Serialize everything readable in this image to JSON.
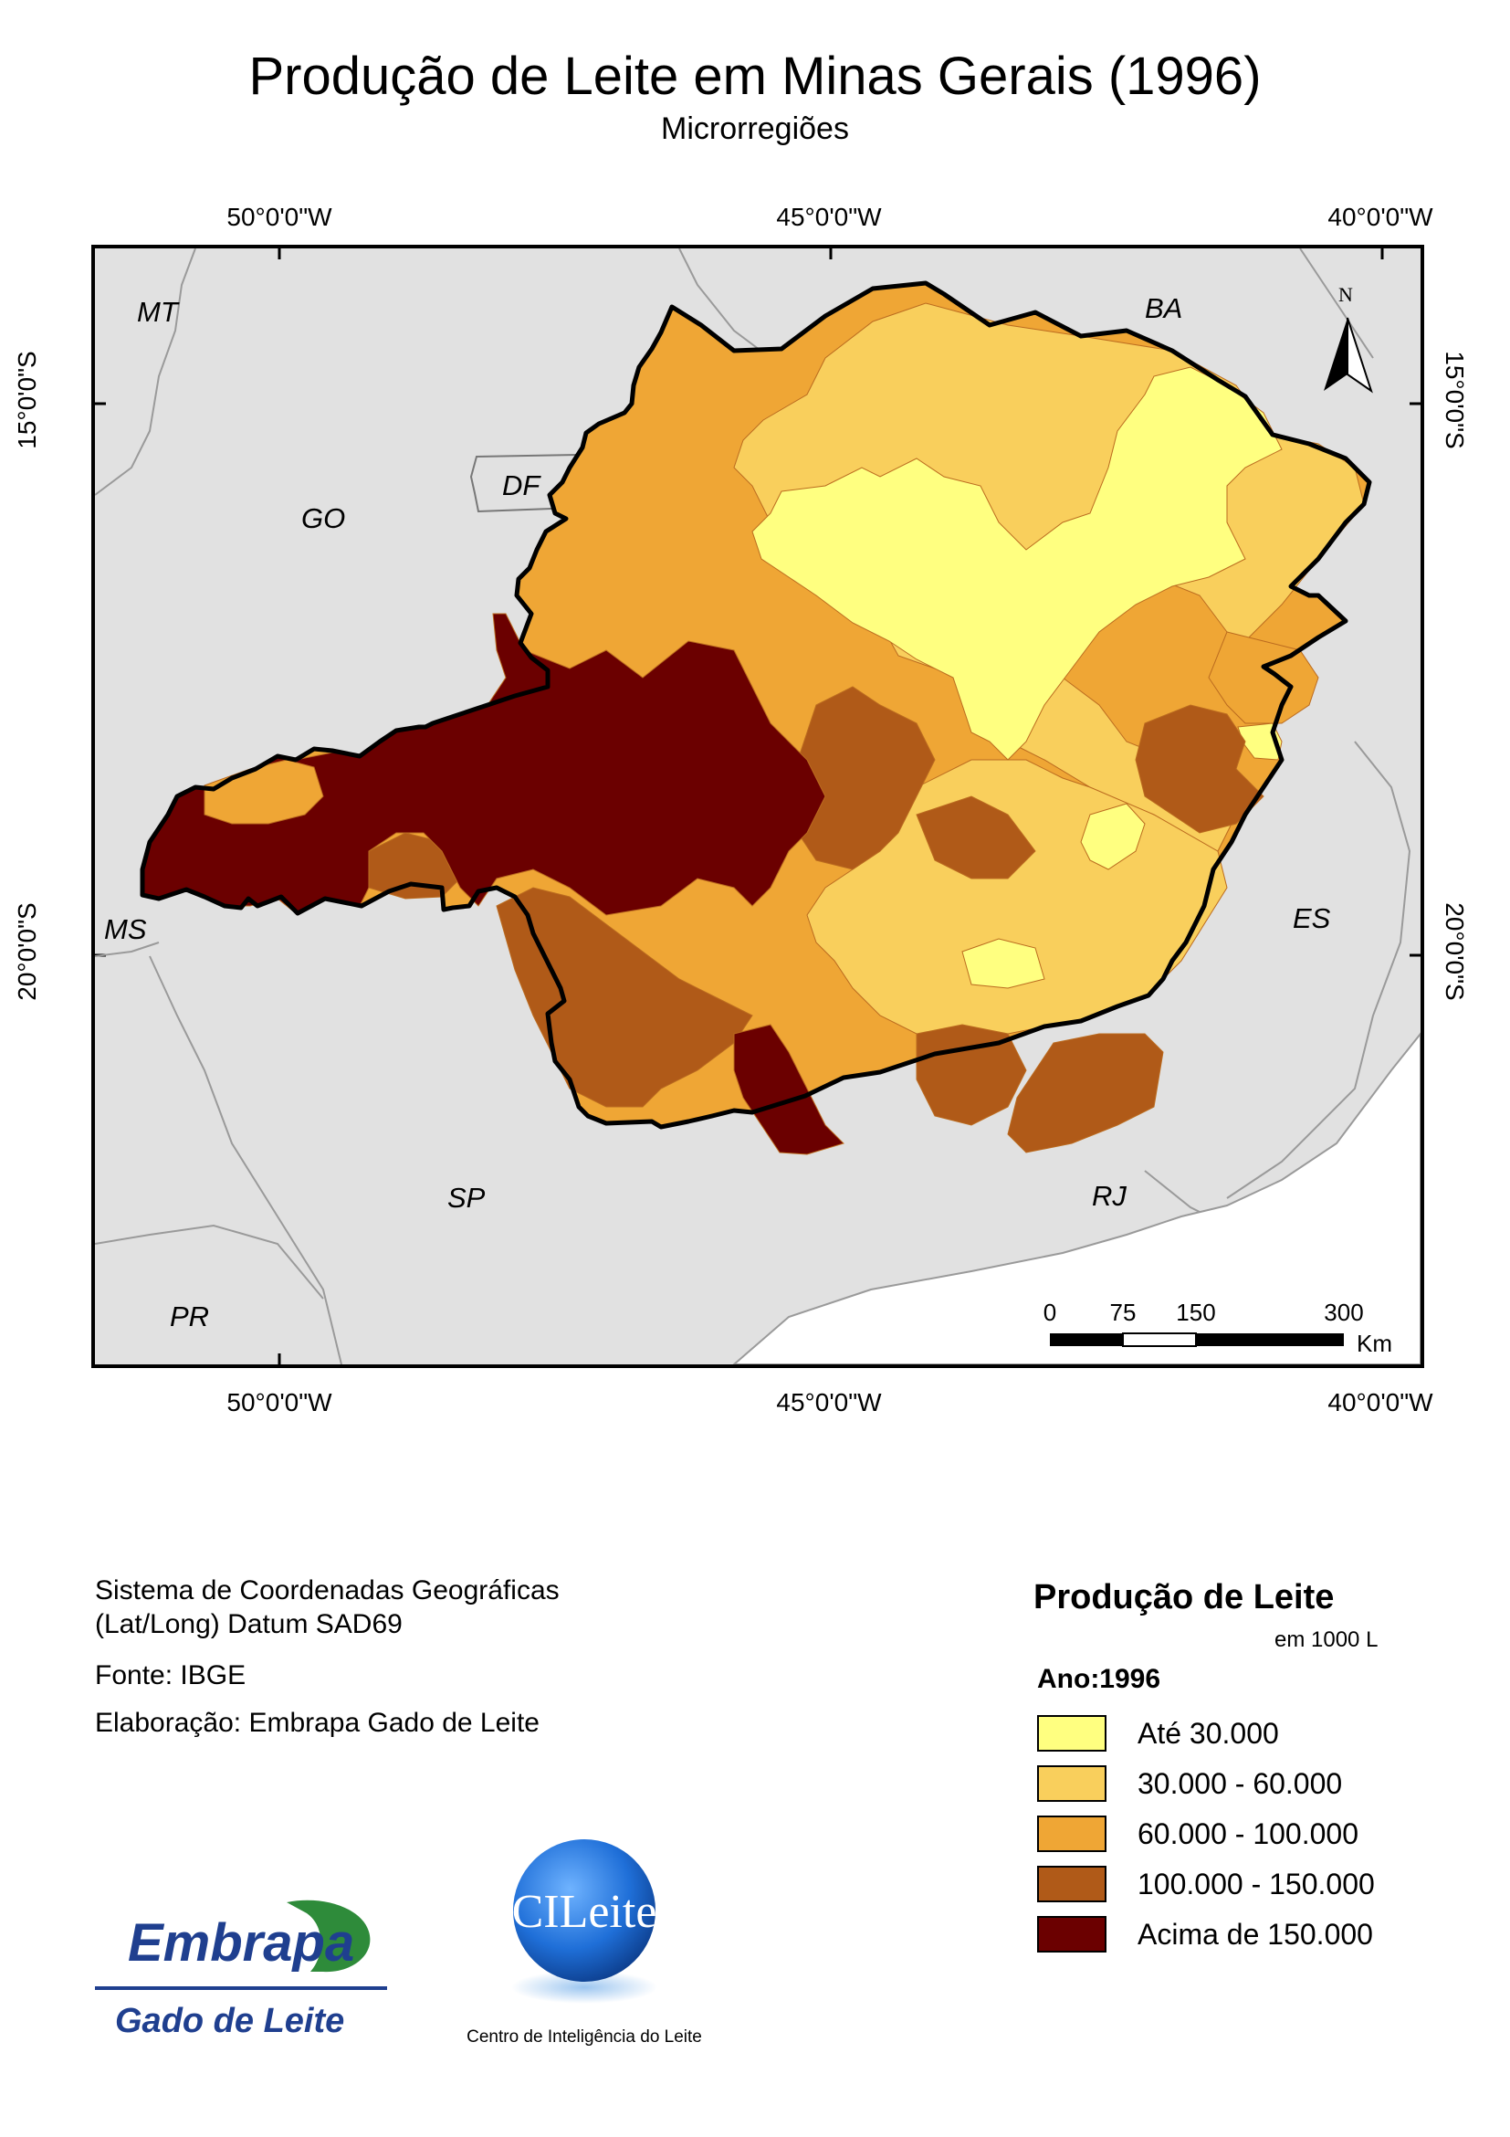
{
  "map": {
    "title": "Produção de Leite em Minas Gerais (1996)",
    "subtitle": "Microrregiões"
  },
  "coordinates": {
    "top": [
      "50°0'0\"W",
      "45°0'0\"W",
      "40°0'0\"W"
    ],
    "bottom": [
      "50°0'0\"W",
      "45°0'0\"W",
      "40°0'0\"W"
    ],
    "left": [
      "15°0'0\"S",
      "20°0'0\"S"
    ],
    "right": [
      "15°0'0\"S",
      "20°0'0\"S"
    ]
  },
  "state_labels": [
    "MT",
    "BA",
    "DF",
    "GO",
    "MS",
    "ES",
    "SP",
    "RJ",
    "PR"
  ],
  "north_arrow": {
    "letter": "N"
  },
  "scale_bar": {
    "ticks": [
      "0",
      "75",
      "150",
      "300"
    ],
    "unit": "Km"
  },
  "credits": {
    "line1": "Sistema de Coordenadas Geográficas",
    "line2": "(Lat/Long) Datum SAD69",
    "source": "Fonte: IBGE",
    "author": "Elaboração: Embrapa Gado de Leite"
  },
  "legend": {
    "title": "Produção de Leite",
    "unit": "em 1000 L",
    "year": "Ano:1996",
    "classes": [
      {
        "label": "Até 30.000",
        "color": "#ffff80"
      },
      {
        "label": "30.000 - 60.000",
        "color": "#f9cf5c"
      },
      {
        "label": "60.000 - 100.000",
        "color": "#efa635"
      },
      {
        "label": "100.000 - 150.000",
        "color": "#b05a18"
      },
      {
        "label": "Acima de 150.000",
        "color": "#6b0000"
      }
    ]
  },
  "logos": {
    "embrapa_word": "Embrapa",
    "embrapa_sub": "Gado de Leite",
    "cileite_word": "CILeite",
    "cileite_sub": "Centro de Inteligência do Leite"
  }
}
